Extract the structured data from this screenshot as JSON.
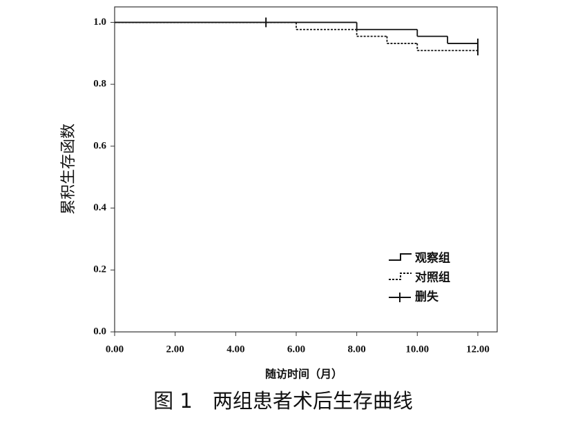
{
  "chart_data": {
    "type": "step",
    "y_label": "累积生存函数",
    "x_label": "随访时间（月）",
    "caption": "图 1　两组患者术后生存曲线",
    "xlim": [
      0,
      12.64
    ],
    "ylim": [
      0,
      1.05
    ],
    "xticks": [
      {
        "value": 0,
        "label": "0.00"
      },
      {
        "value": 2,
        "label": "2.00"
      },
      {
        "value": 4,
        "label": "4.00"
      },
      {
        "value": 6,
        "label": "6.00"
      },
      {
        "value": 8,
        "label": "8.00"
      },
      {
        "value": 10,
        "label": "10.00"
      },
      {
        "value": 12,
        "label": "12.00"
      }
    ],
    "yticks": [
      {
        "value": 0,
        "label": "0.0"
      },
      0.2,
      0.4,
      0.6,
      0.8,
      {
        "value": 1,
        "label": "1.0"
      }
    ],
    "series": [
      {
        "name": "观察组",
        "color": "#111111",
        "style": "solid",
        "x": [
          0,
          8,
          10,
          11
        ],
        "values": [
          1,
          0.977,
          0.955,
          0.932
        ]
      },
      {
        "name": "对照组",
        "color": "#111111",
        "style": "dashed",
        "x": [
          0,
          6,
          8,
          9,
          10
        ],
        "values": [
          1,
          0.977,
          0.955,
          0.932,
          0.909
        ]
      },
      {
        "name": "删失",
        "color": "#111111",
        "style": "censor",
        "x": [
          5,
          12,
          12
        ],
        "values": [
          1,
          0.932,
          0.909
        ]
      }
    ]
  }
}
